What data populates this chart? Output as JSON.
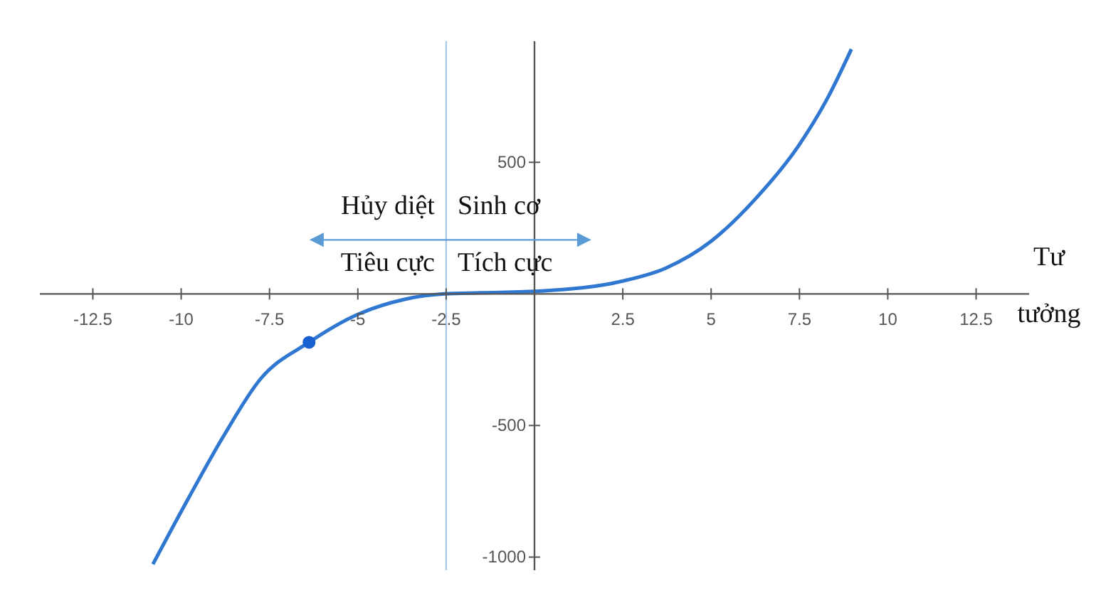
{
  "chart_data": {
    "type": "line",
    "xlabel": "Tư tưởng",
    "series": [
      {
        "color": "#2f77d0",
        "x": [
          -10.8,
          -9.78,
          -8.8,
          -7.76,
          -6.38,
          -5.05,
          -3.72,
          -2.55,
          -1.5,
          0.2,
          2.5,
          3.7,
          5.0,
          6.26,
          7.47,
          8.28,
          8.97
        ],
        "values": [
          -1027,
          -773,
          -540,
          -324,
          -184,
          -81,
          -22,
          0,
          4,
          11,
          49,
          97,
          200,
          362,
          562,
          740,
          930
        ]
      },
      {
        "type": "scatter",
        "color": "#1a5fd0",
        "x": [
          -6.38
        ],
        "values": [
          -184
        ]
      }
    ],
    "xlim": [
      -14,
      14
    ],
    "ylim": [
      -1050,
      960
    ],
    "xticks": [
      -12.5,
      -10,
      -7.5,
      -5,
      -2.5,
      2.5,
      5,
      7.5,
      10,
      12.5
    ],
    "yticks": [
      -1000,
      -500,
      500
    ],
    "ref_lines": [
      {
        "axis": "x",
        "value": -2.5,
        "color": "#9cc3e6"
      }
    ],
    "annotations": [
      "Hủy diệt",
      "Sinh cơ",
      "Tiêu cực",
      "Tích cực"
    ],
    "line_style": "solid",
    "grid": false
  }
}
